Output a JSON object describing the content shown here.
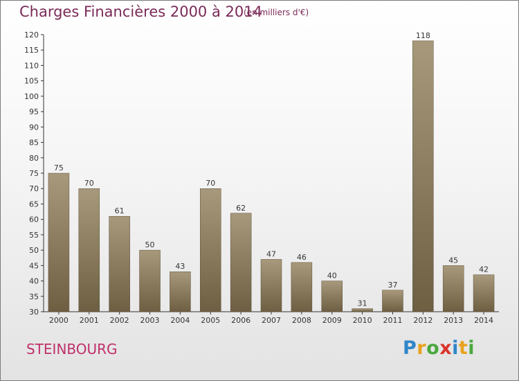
{
  "title": "Charges Financières 2000 à 2014",
  "subtitle": "(en milliers d'€)",
  "commune": "STEINBOURG",
  "logo": {
    "letters": [
      "P",
      "r",
      "o",
      "x",
      "i",
      "t",
      "i"
    ],
    "colors": [
      "#2f86c8",
      "#e8a21e",
      "#4aa83d",
      "#d9342b",
      "#2f86c8",
      "#e8a21e",
      "#4aa83d"
    ]
  },
  "chart_data": {
    "type": "bar",
    "categories": [
      "2000",
      "2001",
      "2002",
      "2003",
      "2004",
      "2005",
      "2006",
      "2007",
      "2008",
      "2009",
      "2010",
      "2011",
      "2012",
      "2013",
      "2014"
    ],
    "values": [
      75,
      70,
      61,
      50,
      43,
      70,
      62,
      47,
      46,
      40,
      31,
      37,
      118,
      45,
      42
    ],
    "data_labels": [
      "75",
      "70",
      "61",
      "50",
      "43",
      "70",
      "62",
      "47",
      "46",
      "40",
      "31",
      "37",
      "118",
      "45",
      "42"
    ],
    "ylim": [
      30,
      120
    ],
    "yticks": [
      30,
      35,
      40,
      45,
      50,
      55,
      60,
      65,
      70,
      75,
      80,
      85,
      90,
      95,
      100,
      105,
      110,
      115,
      120
    ],
    "grid": false,
    "bar_color_top": "#a8997c",
    "bar_color_bottom": "#6e5e42"
  }
}
